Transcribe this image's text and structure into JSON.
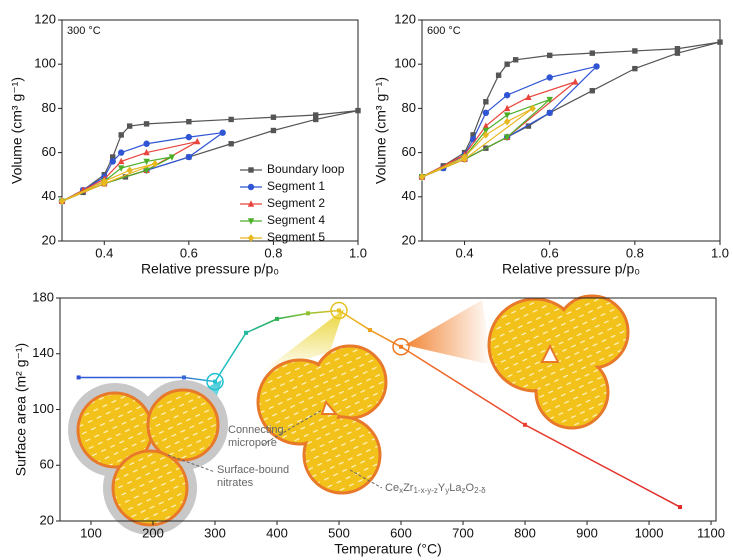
{
  "chart_data": [
    {
      "type": "line",
      "annotation": "300 °C",
      "xlabel": "Relative pressure p/p₀",
      "ylabel": "Volume (cm³ g⁻¹)",
      "xlim": [
        0.3,
        1.0
      ],
      "ylim": [
        20,
        120
      ],
      "xticks": [
        0.4,
        0.6,
        0.8,
        {
          "value": 1,
          "label": "1.0"
        }
      ],
      "yticks": [
        20,
        40,
        60,
        80,
        100,
        120
      ],
      "series": [
        {
          "name": "Boundary loop",
          "color": "#555555",
          "marker": "square",
          "x": [
            0.3,
            0.35,
            0.4,
            0.45,
            0.5,
            0.6,
            0.7,
            0.8,
            0.9,
            1.0,
            0.9,
            0.8,
            0.7,
            0.6,
            0.5,
            0.46,
            0.44,
            0.42,
            0.4,
            0.35,
            0.3
          ],
          "values": [
            38,
            42,
            46,
            49,
            52,
            58,
            64,
            70,
            75,
            79,
            77,
            76,
            75,
            74,
            73,
            72,
            68,
            58,
            50,
            43,
            38
          ]
        },
        {
          "name": "Segment 1",
          "color": "#2f55d4",
          "marker": "circle",
          "x": [
            0.3,
            0.4,
            0.5,
            0.6,
            0.68,
            0.6,
            0.5,
            0.44,
            0.42,
            0.4,
            0.35,
            0.3
          ],
          "values": [
            38,
            46,
            52,
            58,
            69,
            67,
            64,
            60,
            56,
            49,
            43,
            38
          ]
        },
        {
          "name": "Segment 2",
          "color": "#e8453c",
          "marker": "triangle",
          "x": [
            0.3,
            0.4,
            0.5,
            0.62,
            0.5,
            0.44,
            0.4,
            0.35,
            0.3
          ],
          "values": [
            38,
            46,
            52,
            65,
            60,
            56,
            48,
            43,
            38
          ]
        },
        {
          "name": "Segment 4",
          "color": "#4caf27",
          "marker": "triangle-down",
          "x": [
            0.3,
            0.4,
            0.5,
            0.56,
            0.5,
            0.44,
            0.4,
            0.3
          ],
          "values": [
            38,
            46,
            52,
            58,
            56,
            53,
            47,
            38
          ]
        },
        {
          "name": "Segment 5",
          "color": "#e8b820",
          "marker": "diamond",
          "x": [
            0.3,
            0.4,
            0.52,
            0.46,
            0.4,
            0.3
          ],
          "values": [
            38,
            46,
            55,
            52,
            47,
            38
          ]
        }
      ]
    },
    {
      "type": "line",
      "annotation": "600 °C",
      "xlabel": "Relative pressure p/p₀",
      "ylabel": "Volume (cm³ g⁻¹)",
      "xlim": [
        0.3,
        1.0
      ],
      "ylim": [
        20,
        120
      ],
      "xticks": [
        0.4,
        0.6,
        0.8,
        {
          "value": 1,
          "label": "1.0"
        }
      ],
      "yticks": [
        20,
        40,
        60,
        80,
        100,
        120
      ],
      "series": [
        {
          "color": "#555555",
          "marker": "square",
          "x": [
            0.3,
            0.35,
            0.4,
            0.45,
            0.5,
            0.55,
            0.6,
            0.7,
            0.8,
            0.9,
            1.0,
            0.9,
            0.8,
            0.7,
            0.6,
            0.52,
            0.5,
            0.48,
            0.45,
            0.42,
            0.4,
            0.35,
            0.3
          ],
          "values": [
            49,
            53,
            57,
            62,
            67,
            72,
            78,
            88,
            98,
            105,
            110,
            107,
            106,
            105,
            104,
            102,
            100,
            95,
            83,
            68,
            60,
            54,
            49
          ]
        },
        {
          "color": "#2f55d4",
          "marker": "circle",
          "x": [
            0.3,
            0.4,
            0.5,
            0.6,
            0.71,
            0.6,
            0.5,
            0.45,
            0.42,
            0.4,
            0.35,
            0.3
          ],
          "values": [
            49,
            57,
            67,
            78,
            99,
            94,
            86,
            78,
            66,
            59,
            53,
            49
          ]
        },
        {
          "color": "#e8453c",
          "marker": "triangle",
          "x": [
            0.3,
            0.4,
            0.5,
            0.66,
            0.55,
            0.5,
            0.45,
            0.4,
            0.3
          ],
          "values": [
            49,
            57,
            67,
            92,
            85,
            80,
            72,
            59,
            49
          ]
        },
        {
          "color": "#4caf27",
          "marker": "triangle-down",
          "x": [
            0.3,
            0.4,
            0.5,
            0.6,
            0.5,
            0.45,
            0.4,
            0.3
          ],
          "values": [
            49,
            57,
            67,
            84,
            77,
            70,
            58,
            49
          ]
        },
        {
          "color": "#e8b820",
          "marker": "diamond",
          "x": [
            0.3,
            0.4,
            0.56,
            0.5,
            0.45,
            0.4,
            0.3
          ],
          "values": [
            49,
            57,
            80,
            74,
            68,
            58,
            49
          ]
        }
      ]
    },
    {
      "type": "gradient-line",
      "xlabel": "Temperature (°C)",
      "ylabel": "Surface area (m² g⁻¹)",
      "xlim": [
        50,
        1108
      ],
      "ylim": [
        20,
        180
      ],
      "xticks": [
        100,
        200,
        300,
        400,
        500,
        600,
        700,
        800,
        900,
        1000,
        1100
      ],
      "yticks": [
        20,
        60,
        100,
        140,
        180
      ],
      "x": [
        80,
        250,
        300,
        350,
        400,
        450,
        500,
        550,
        600,
        800,
        1050
      ],
      "values": [
        123,
        123,
        120,
        155,
        165,
        169,
        171,
        157,
        145,
        89,
        30
      ],
      "point_colors": [
        "#2f55d4",
        "#3a6ad8",
        "#20c0d0",
        "#20b8a0",
        "#30b050",
        "#90c030",
        "#e8c020",
        "#f0a020",
        "#f07820",
        "#e84030",
        "#e02828"
      ],
      "highlight_x": [
        300,
        500,
        600
      ],
      "micropore_label": [
        "Connecting",
        "micropore"
      ],
      "nitrates_label": [
        "Surface-bound",
        "nitrates"
      ],
      "formula": [
        "Ce",
        "x",
        "Zr",
        "1-x-y-z",
        "Y",
        "y",
        "La",
        "z",
        "O",
        "2-δ"
      ]
    }
  ]
}
